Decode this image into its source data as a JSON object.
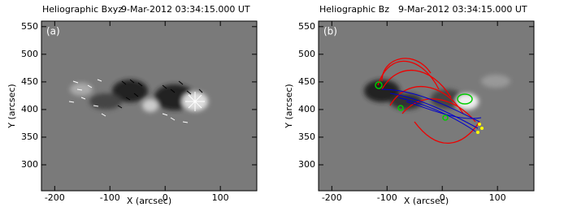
{
  "chart_data": [
    {
      "type": "image",
      "title": "Heliographic Bxyz",
      "subtitle": "9-Mar-2012 03:34:15.000 UT",
      "panel_label": "(a)",
      "x_label": "X (arcsec)",
      "y_label": "Y (arcsec)",
      "xlim": [
        -224,
        166
      ],
      "ylim": [
        253,
        560
      ],
      "xticks": [
        -200,
        -100,
        0,
        100
      ],
      "yticks": [
        300,
        350,
        400,
        450,
        500,
        550
      ]
    },
    {
      "type": "image",
      "title": "Heliographic Bz",
      "subtitle": "9-Mar-2012 03:34:15.000 UT",
      "panel_label": "(b)",
      "x_label": "X (arcsec)",
      "y_label": "Y (arcsec)",
      "xlim": [
        -224,
        166
      ],
      "ylim": [
        253,
        560
      ],
      "xticks": [
        -200,
        -100,
        0,
        100
      ],
      "yticks": [
        300,
        350,
        400,
        450,
        500,
        550
      ]
    }
  ]
}
